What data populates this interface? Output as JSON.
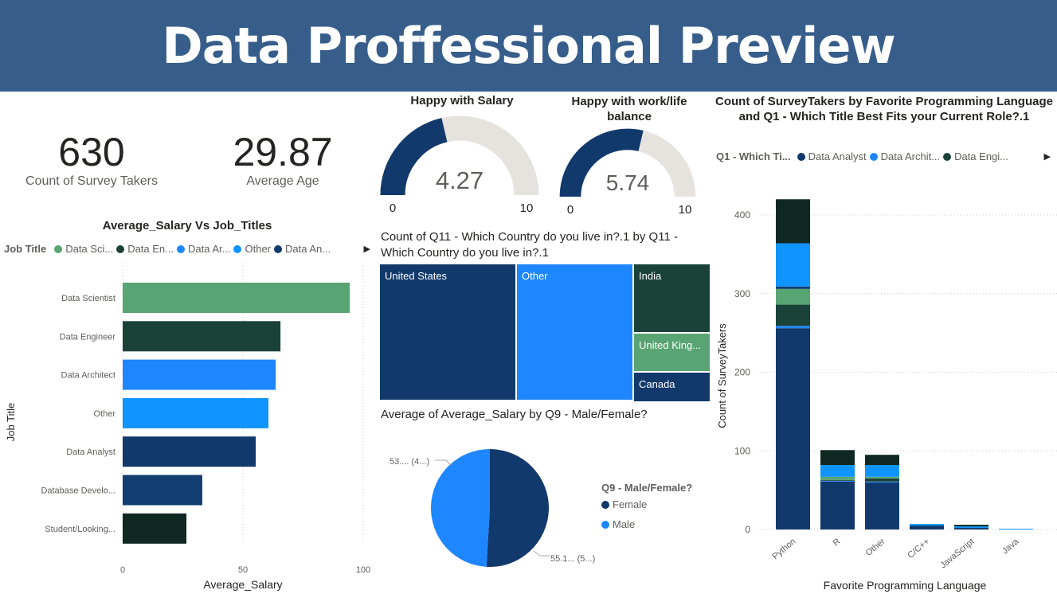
{
  "header": {
    "title": "Data Proffessional Preview"
  },
  "kpis": [
    {
      "value": "630",
      "label": "Count of Survey Takers"
    },
    {
      "value": "29.87",
      "label": "Average Age"
    }
  ],
  "gauges": [
    {
      "title": "Happy with Salary",
      "value": 4.27,
      "value_label": "4.27",
      "min_label": "0",
      "max_label": "10",
      "min": 0,
      "max": 10
    },
    {
      "title": "Happy with work/life balance",
      "value": 5.74,
      "value_label": "5.74",
      "min_label": "0",
      "max_label": "10",
      "min": 0,
      "max": 10
    }
  ],
  "colors": {
    "data_analyst": "#12396b",
    "data_architect": "#1e86ff",
    "data_engineer": "#1b4239",
    "data_scientist": "#58a472",
    "database_developer": "#123e72",
    "other": "#1094ff",
    "student": "#0f2822",
    "gauge_track": "#e6e2dd"
  },
  "chart_data": [
    {
      "type": "bar",
      "orientation": "horizontal",
      "title": "Average_Salary Vs Job_Titles",
      "legend": {
        "title": "Job Title",
        "items": [
          "Data Sci...",
          "Data En...",
          "Data Ar...",
          "Other",
          "Data An..."
        ],
        "placement": "top"
      },
      "categories": [
        "Data Scientist",
        "Data Engineer",
        "Data Architect",
        "Other",
        "Data Analyst",
        "Database Develo...",
        "Student/Looking..."
      ],
      "values": [
        94.4,
        65.6,
        63.6,
        60.6,
        55.3,
        33.1,
        26.5
      ],
      "xlabel": "Average_Salary",
      "ylabel": "Job Title",
      "xlim": [
        0,
        100
      ],
      "xticks": [
        "0",
        "50",
        "100"
      ],
      "grid": true
    },
    {
      "type": "treemap",
      "title": "Count of Q11 - Which Country do you live in?.1 by Q11 - Which Country do you live in?.1",
      "categories": [
        "United States",
        "Other",
        "India",
        "United King...",
        "Canada"
      ],
      "values": [
        262,
        225,
        72,
        40,
        31
      ]
    },
    {
      "type": "pie",
      "title": "Average of Average_Salary by Q9 - Male/Female?",
      "legend": {
        "title": "Q9 - Male/Female?",
        "items": [
          "Female",
          "Male"
        ],
        "placement": "right"
      },
      "categories": [
        "Female",
        "Male"
      ],
      "values": [
        55.1,
        53.1
      ],
      "data_labels": [
        "55.1... (5...)",
        "53.... (4...)"
      ]
    },
    {
      "type": "bar",
      "stacked": true,
      "title": "Count of SurveyTakers by Favorite Programming Language and Q1 - Which Title Best Fits your Current Role?.1",
      "legend": {
        "title": "Q1 - Which Ti...",
        "items": [
          "Data Analyst",
          "Data Archit...",
          "Data Engi..."
        ],
        "placement": "top"
      },
      "categories": [
        "Python",
        "R",
        "Other",
        "C/C++",
        "JavaScript",
        "Java"
      ],
      "series": [
        {
          "name": "Data Analyst",
          "values": [
            256,
            61,
            60,
            5,
            2,
            0
          ]
        },
        {
          "name": "Data Architect",
          "values": [
            3,
            1,
            1,
            0,
            0,
            0
          ]
        },
        {
          "name": "Data Engineer",
          "values": [
            27,
            1,
            4,
            0,
            0,
            0
          ]
        },
        {
          "name": "Data Scientist",
          "values": [
            20,
            4,
            2,
            0,
            0,
            0
          ]
        },
        {
          "name": "Database Developer",
          "values": [
            3,
            0,
            0,
            0,
            0,
            0
          ]
        },
        {
          "name": "Other",
          "values": [
            55,
            15,
            15,
            2,
            2,
            1
          ]
        },
        {
          "name": "Student/Looking",
          "values": [
            56,
            19,
            13,
            0,
            2,
            0
          ]
        }
      ],
      "xlabel": "Favorite Programming Language",
      "ylabel": "Count of SurveyTakers",
      "ylim": [
        0,
        420
      ],
      "yticks": [
        "0",
        "100",
        "200",
        "300",
        "400"
      ],
      "grid": true
    }
  ]
}
